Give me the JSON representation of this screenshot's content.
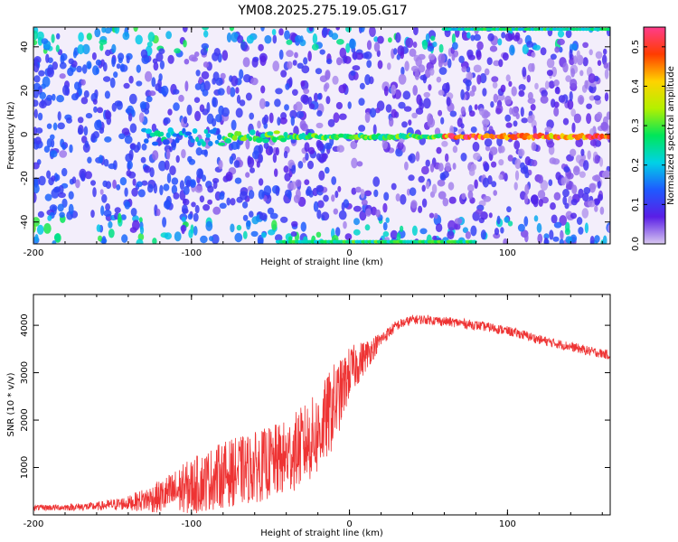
{
  "title": "YM08.2025.275.19.05.G17",
  "chart_data": [
    {
      "type": "heatmap",
      "xlabel": "Height of straight line (km)",
      "ylabel": "Frequency (Hz)",
      "xlim": [
        -200,
        165
      ],
      "ylim": [
        -50,
        49
      ],
      "xticks": [
        -200,
        -100,
        0,
        100
      ],
      "yticks": [
        -40,
        -20,
        0,
        20,
        40
      ],
      "colorbar": {
        "label": "Normalized spectral amplitude",
        "range": [
          0.0,
          0.55
        ],
        "ticks": [
          "0.0",
          "0.1",
          "0.2",
          "0.3",
          "0.4",
          "0.5"
        ],
        "colors": [
          "#d8c8f0",
          "#5a1ee6",
          "#1e5aff",
          "#00d2e6",
          "#00e65a",
          "#b4f000",
          "#ffd200",
          "#ff3c00",
          "#ff3c8c"
        ]
      },
      "features": {
        "main_line_freq_hz": -1,
        "main_line_start_km": -130,
        "top_line_freq_hz": 48,
        "top_line_start_km": 60,
        "bottom_line_freq_hz": -49,
        "bottom_line_range_km": [
          -45,
          80
        ]
      }
    },
    {
      "type": "line",
      "series_name": "SNR",
      "color": "#ee3333",
      "xlabel": "Height of straight line (km)",
      "ylabel": "SNR (10 * v/v)",
      "xlim": [
        -200,
        165
      ],
      "ylim": [
        0,
        4650
      ],
      "xticks": [
        -200,
        -100,
        0,
        100
      ],
      "yticks": [
        1000,
        2000,
        3000,
        4000
      ],
      "x": [
        -200,
        -180,
        -160,
        -140,
        -120,
        -100,
        -80,
        -60,
        -40,
        -20,
        -10,
        -5,
        0,
        10,
        20,
        30,
        40,
        50,
        60,
        70,
        80,
        90,
        100,
        110,
        120,
        130,
        140,
        150,
        165
      ],
      "values": [
        150,
        160,
        180,
        250,
        380,
        600,
        850,
        1000,
        1200,
        1700,
        2300,
        2600,
        3000,
        3350,
        3700,
        4000,
        4120,
        4120,
        4080,
        4050,
        4000,
        3950,
        3880,
        3800,
        3700,
        3620,
        3550,
        3470,
        3370
      ],
      "noise": [
        60,
        70,
        90,
        150,
        350,
        600,
        700,
        750,
        800,
        900,
        900,
        700,
        550,
        350,
        150,
        110,
        100,
        100,
        100,
        100,
        100,
        100,
        100,
        100,
        100,
        100,
        100,
        100,
        100
      ]
    }
  ]
}
